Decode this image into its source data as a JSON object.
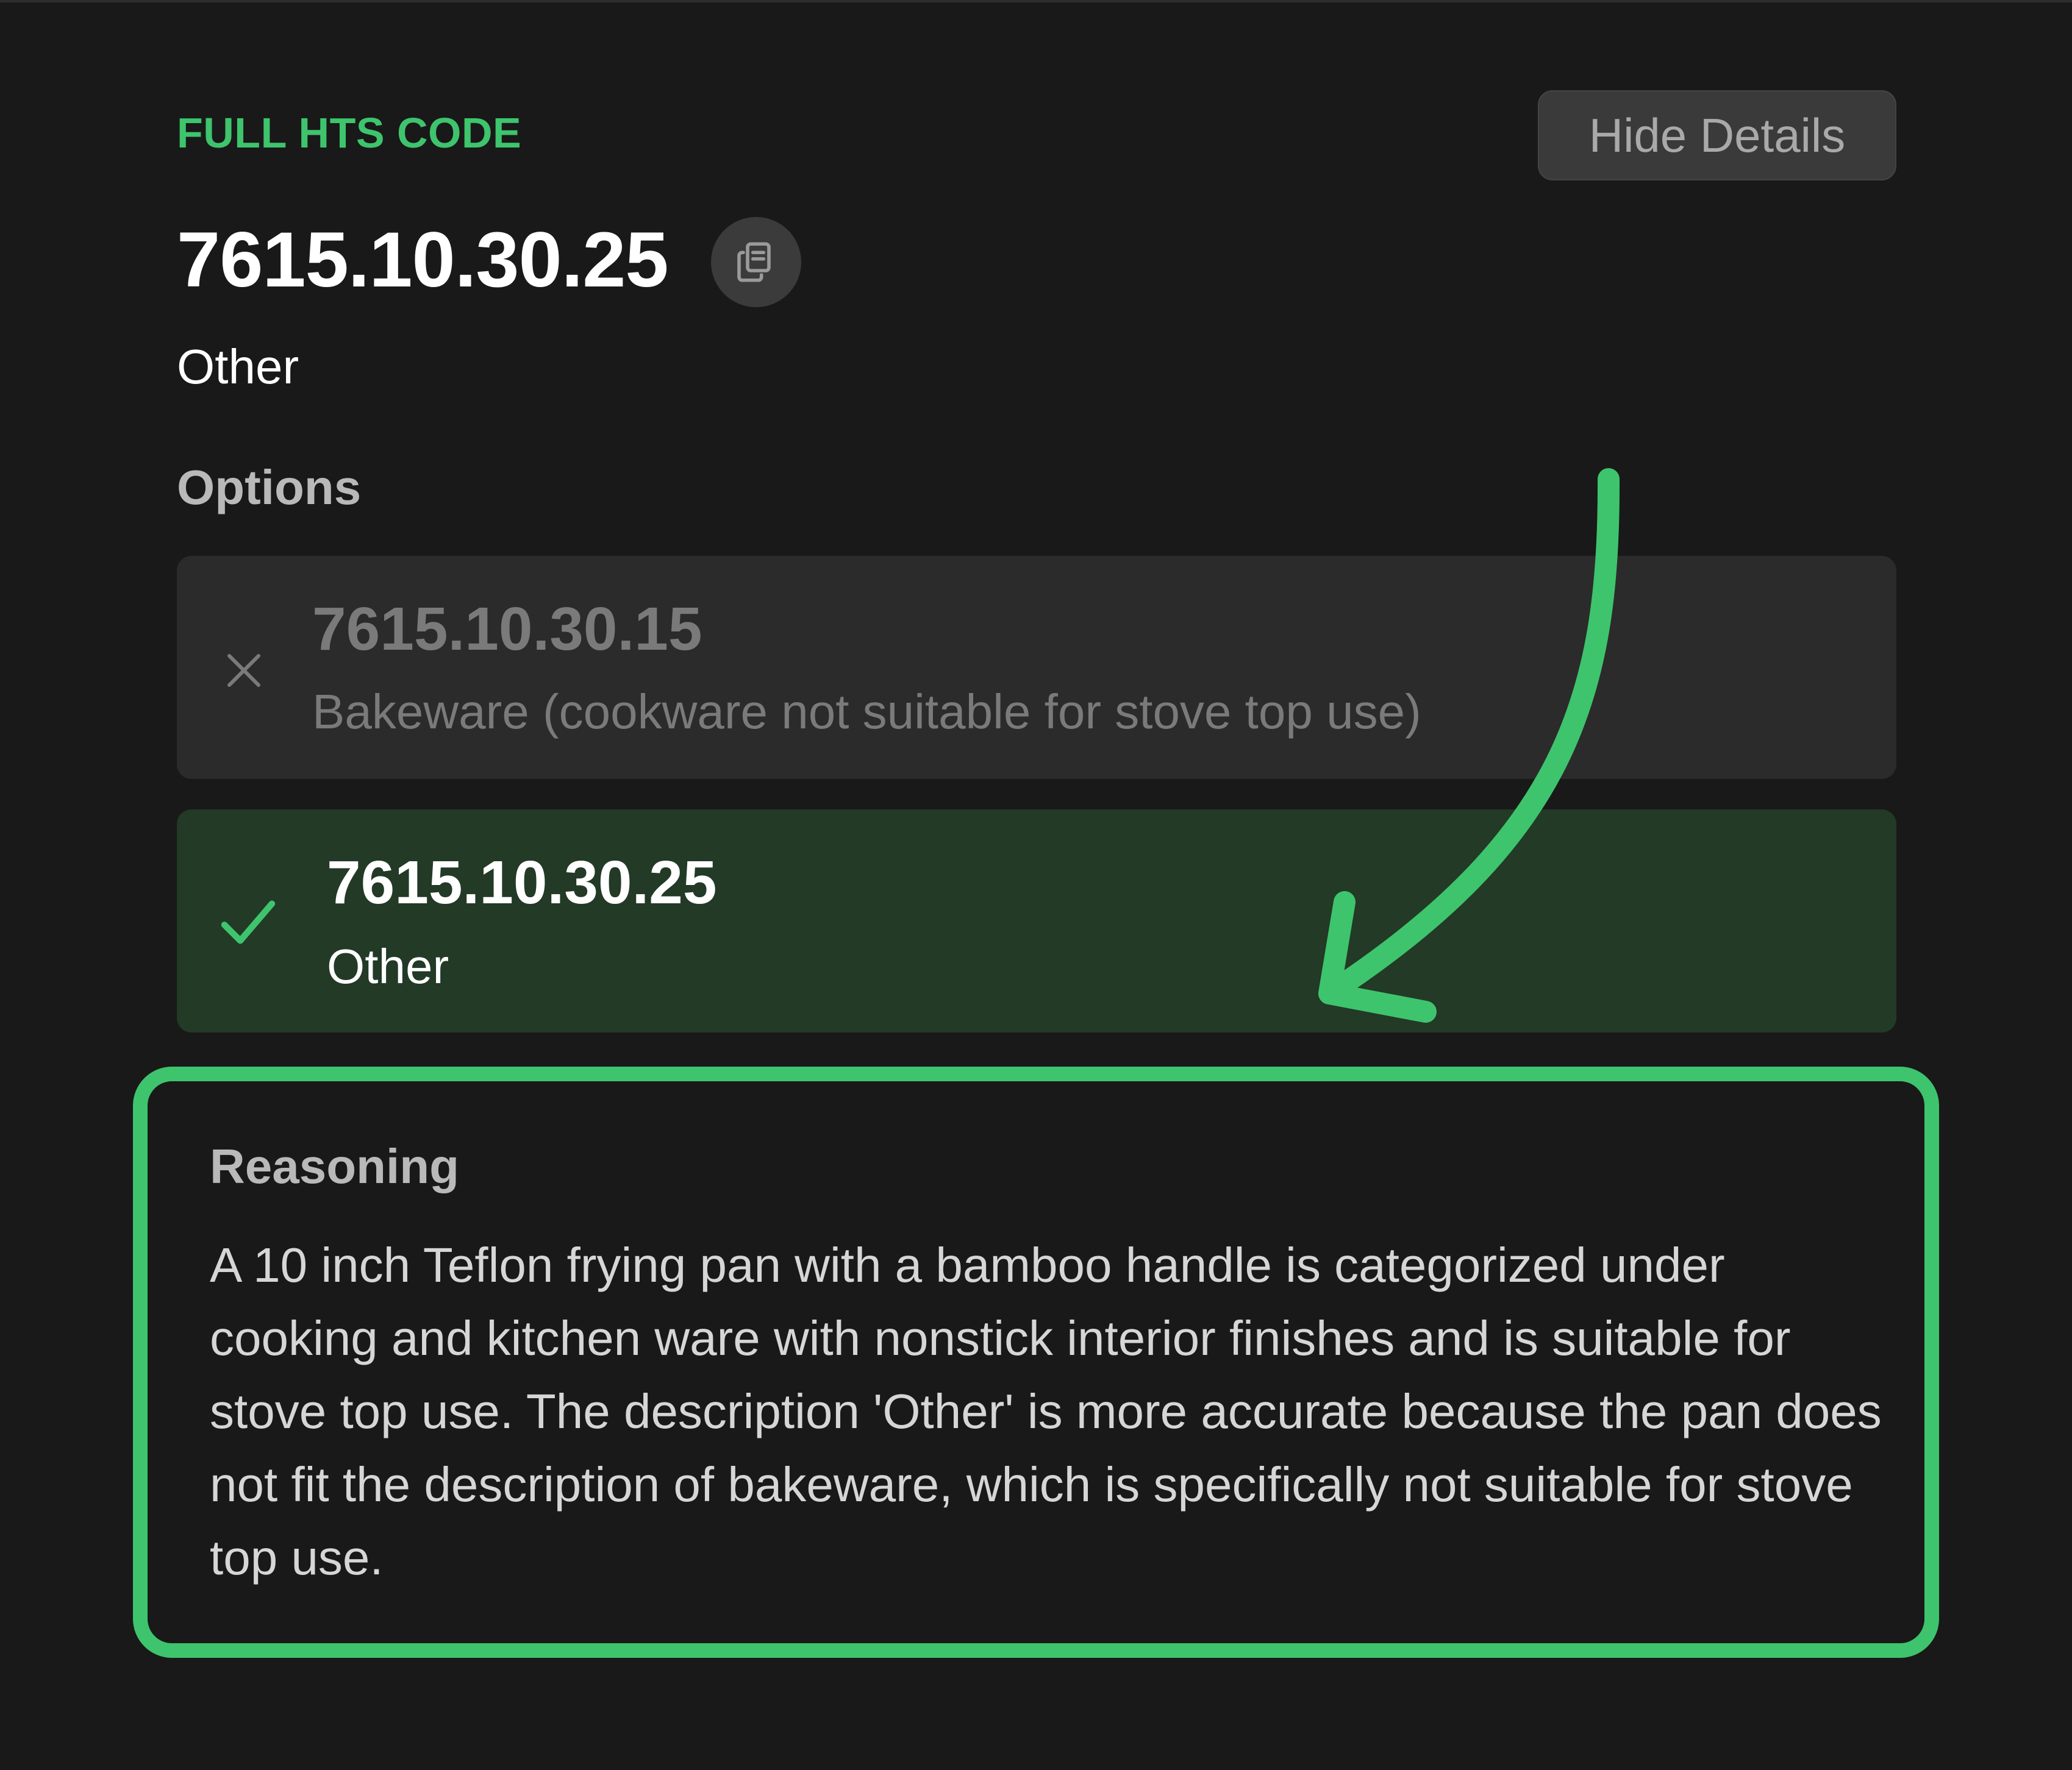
{
  "header": {
    "label": "FULL HTS CODE",
    "hide_details_label": "Hide Details"
  },
  "selected": {
    "code": "7615.10.30.25",
    "description": "Other"
  },
  "options": {
    "title": "Options",
    "items": [
      {
        "code": "7615.10.30.15",
        "description": "Bakeware (cookware not suitable for stove top use)",
        "status": "rejected",
        "icon": "x-icon"
      },
      {
        "code": "7615.10.30.25",
        "description": "Other",
        "status": "selected",
        "icon": "check-icon"
      }
    ]
  },
  "reasoning": {
    "title": "Reasoning",
    "text": "A 10 inch Teflon frying pan with a bamboo handle is categorized under cooking and kitchen ware with nonstick interior finishes and is suitable for stove top use. The description 'Other' is more accurate because the pan does not fit the description of bakeware, which is specifically not suitable for stove top use."
  },
  "colors": {
    "background": "#191919",
    "accent": "#3ec46d",
    "selected_bg": "#223a26",
    "option_bg": "#2b2b2b",
    "muted_text": "#7a7a7a"
  }
}
